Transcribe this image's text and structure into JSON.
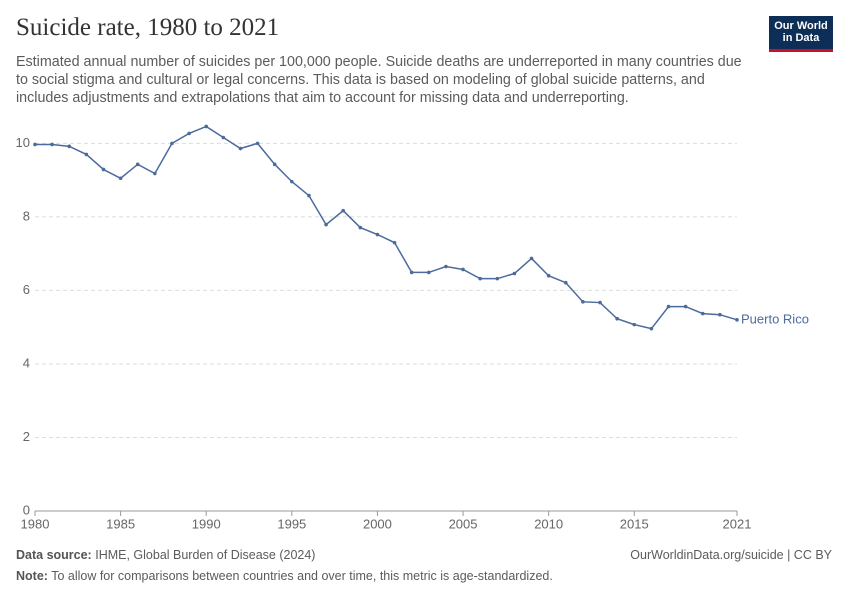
{
  "chart_data": {
    "type": "line",
    "title": "Suicide rate, 1980 to 2021",
    "subtitle": "Estimated annual number of suicides per 100,000 people. Suicide deaths are underreported in many countries due to social stigma and cultural or legal concerns. This data is based on modeling of global suicide patterns, and includes adjustments and extrapolations that aim to account for missing data and underreporting.",
    "logo": [
      "Our World",
      "in Data"
    ],
    "x": [
      1980,
      1981,
      1982,
      1983,
      1984,
      1985,
      1986,
      1987,
      1988,
      1989,
      1990,
      1991,
      1992,
      1993,
      1994,
      1995,
      1996,
      1997,
      1998,
      1999,
      2000,
      2001,
      2002,
      2003,
      2004,
      2005,
      2006,
      2007,
      2008,
      2009,
      2010,
      2011,
      2012,
      2013,
      2014,
      2015,
      2016,
      2017,
      2018,
      2019,
      2020,
      2021
    ],
    "series": [
      {
        "name": "Puerto Rico",
        "color": "#4c6a9c",
        "values": [
          9.97,
          9.97,
          9.92,
          9.7,
          9.29,
          9.05,
          9.43,
          9.18,
          10.0,
          10.27,
          10.46,
          10.16,
          9.86,
          10.0,
          9.43,
          8.96,
          8.58,
          7.79,
          8.17,
          7.71,
          7.52,
          7.3,
          6.49,
          6.49,
          6.65,
          6.57,
          6.32,
          6.32,
          6.46,
          6.87,
          6.4,
          6.21,
          5.69,
          5.67,
          5.23,
          5.07,
          4.96,
          5.56,
          5.56,
          5.37,
          5.34,
          5.2
        ]
      }
    ],
    "xlim": [
      1980,
      2021
    ],
    "xticks": [
      1980,
      1985,
      1990,
      1995,
      2000,
      2005,
      2010,
      2015,
      2021
    ],
    "ylim": [
      0,
      10.5
    ],
    "yticks": [
      0,
      2,
      4,
      6,
      8,
      10
    ],
    "grid": true,
    "source_label": "Data source:",
    "source": "IHME, Global Burden of Disease (2024)",
    "credit": "OurWorldinData.org/suicide | CC BY",
    "note_label": "Note:",
    "note": "To allow for comparisons between countries and over time, this metric is age-standardized."
  }
}
